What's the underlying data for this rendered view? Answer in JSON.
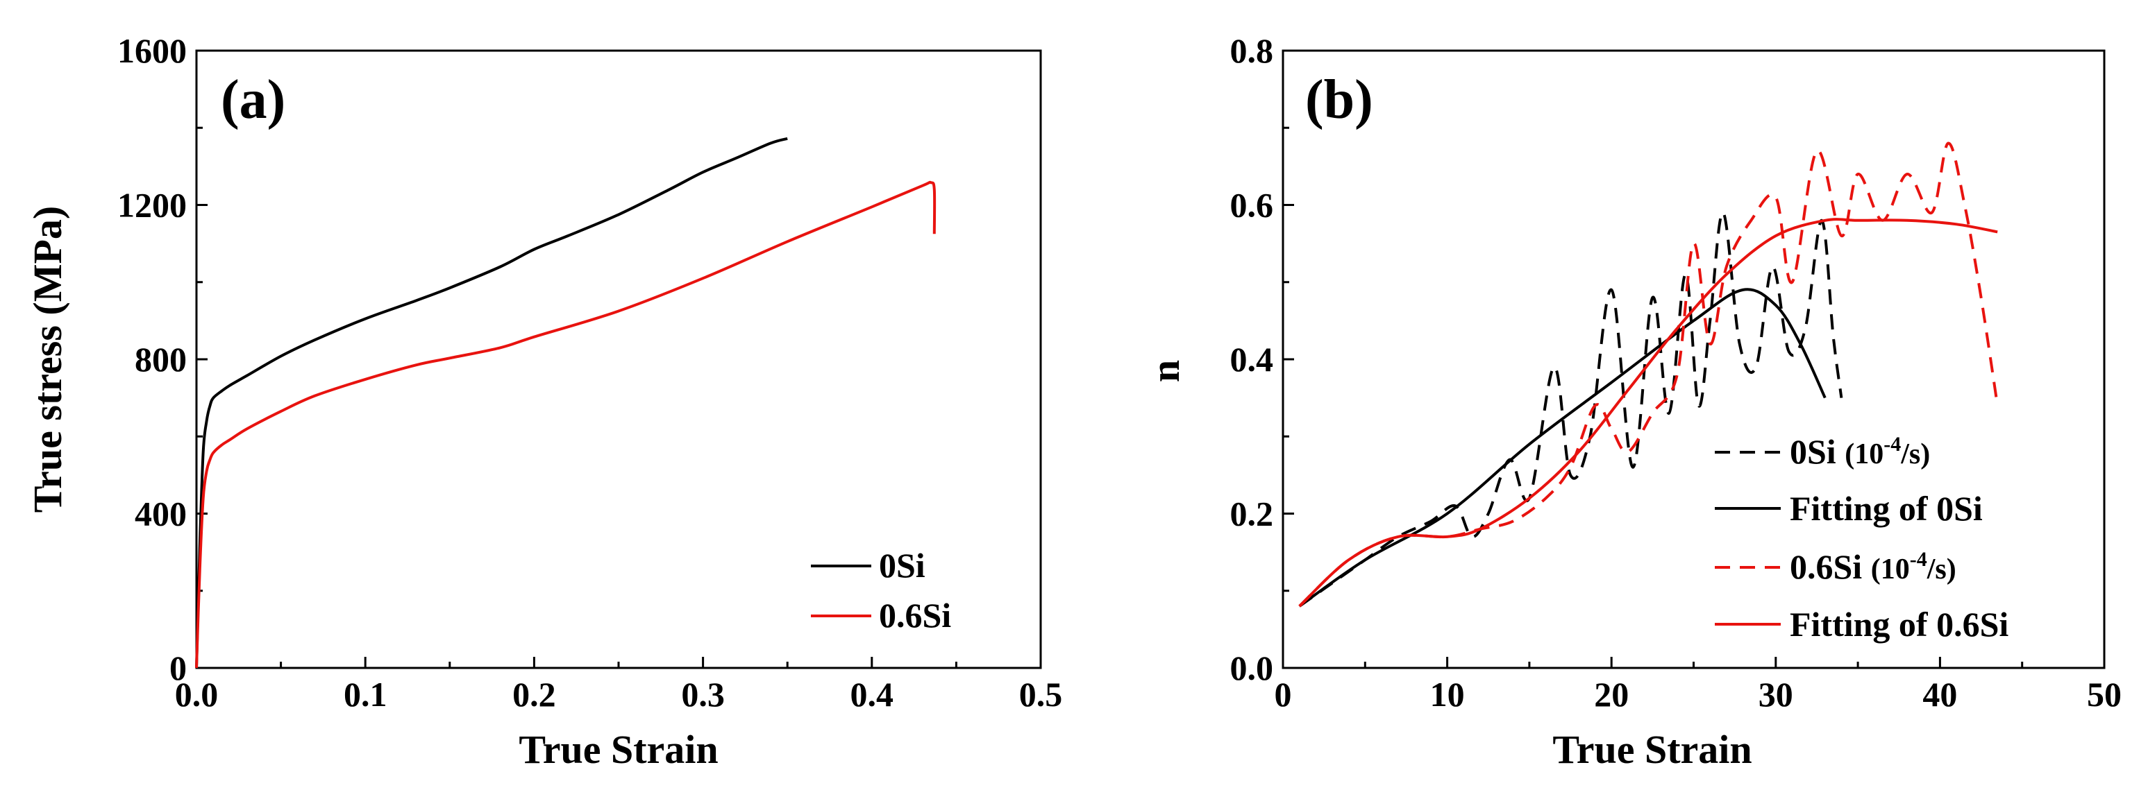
{
  "chart_data": [
    {
      "type": "line",
      "panel_label": "(a)",
      "xlabel": "True Strain",
      "ylabel": "True stress (MPa)",
      "xlim": [
        0.0,
        0.5
      ],
      "ylim": [
        0,
        1600
      ],
      "x_ticks": [
        "0.0",
        "0.1",
        "0.2",
        "0.3",
        "0.4",
        "0.5"
      ],
      "y_ticks": [
        "0",
        "400",
        "800",
        "1200",
        "1600"
      ],
      "grid": false,
      "legend_position": "bottom-right",
      "series": [
        {
          "name": "0Si",
          "color": "#000000",
          "style": "solid",
          "x": [
            0.0,
            0.002,
            0.004,
            0.006,
            0.008,
            0.01,
            0.015,
            0.02,
            0.03,
            0.05,
            0.07,
            0.1,
            0.13,
            0.15,
            0.18,
            0.2,
            0.22,
            0.25,
            0.28,
            0.3,
            0.32,
            0.34,
            0.35
          ],
          "y": [
            0,
            320,
            560,
            640,
            680,
            700,
            718,
            733,
            758,
            808,
            850,
            905,
            952,
            985,
            1040,
            1085,
            1120,
            1175,
            1240,
            1285,
            1322,
            1360,
            1372
          ]
        },
        {
          "name": "0.6Si",
          "color": "#e8130f",
          "style": "solid",
          "x": [
            0.0,
            0.002,
            0.004,
            0.006,
            0.008,
            0.01,
            0.015,
            0.02,
            0.03,
            0.05,
            0.07,
            0.1,
            0.13,
            0.15,
            0.18,
            0.2,
            0.25,
            0.3,
            0.35,
            0.4,
            0.43,
            0.435,
            0.437,
            0.437
          ],
          "y": [
            0,
            260,
            440,
            510,
            540,
            558,
            578,
            592,
            620,
            665,
            705,
            748,
            785,
            803,
            830,
            858,
            925,
            1010,
            1105,
            1195,
            1250,
            1258,
            1240,
            1125
          ]
        }
      ]
    },
    {
      "type": "line",
      "panel_label": "(b)",
      "xlabel": "True Strain",
      "ylabel": "n",
      "xlim": [
        0,
        50
      ],
      "ylim": [
        0.0,
        0.8
      ],
      "x_ticks": [
        "0",
        "10",
        "20",
        "30",
        "40",
        "50"
      ],
      "y_ticks": [
        "0.0",
        "0.2",
        "0.4",
        "0.6",
        "0.8"
      ],
      "grid": false,
      "legend_position": "bottom-right",
      "series": [
        {
          "name": "0Si (10-4/s)",
          "color": "#000000",
          "style": "dashed",
          "x": [
            1,
            3,
            5,
            7,
            9,
            10.5,
            11.5,
            12.5,
            13.8,
            15,
            16.5,
            17.5,
            18.7,
            20,
            21.3,
            22.5,
            23.5,
            24.5,
            25.3,
            26,
            26.8,
            27.8,
            28.8,
            29.8,
            30.8,
            31.8,
            32.8,
            33.5,
            34
          ],
          "y": [
            0.08,
            0.11,
            0.14,
            0.17,
            0.19,
            0.21,
            0.17,
            0.2,
            0.27,
            0.22,
            0.39,
            0.25,
            0.3,
            0.49,
            0.26,
            0.48,
            0.33,
            0.51,
            0.34,
            0.45,
            0.59,
            0.42,
            0.39,
            0.52,
            0.41,
            0.44,
            0.58,
            0.43,
            0.35
          ]
        },
        {
          "name": "Fitting of 0Si",
          "color": "#000000",
          "style": "solid",
          "x": [
            1,
            5,
            10,
            15,
            20,
            25,
            28,
            30,
            31.5,
            33
          ],
          "y": [
            0.08,
            0.14,
            0.2,
            0.29,
            0.37,
            0.45,
            0.49,
            0.47,
            0.42,
            0.35
          ]
        },
        {
          "name": "0.6Si (10-4/s)",
          "color": "#e8130f",
          "style": "dashed",
          "x": [
            1,
            4,
            7,
            10,
            12,
            14,
            16,
            17.5,
            19,
            20,
            21,
            22.5,
            24,
            25,
            26,
            27,
            28.5,
            30,
            31,
            32.5,
            34,
            35,
            36.5,
            38,
            39.5,
            40.5,
            41.5,
            42.5,
            43.5
          ],
          "y": [
            0.08,
            0.14,
            0.17,
            0.17,
            0.18,
            0.19,
            0.22,
            0.26,
            0.34,
            0.31,
            0.28,
            0.33,
            0.38,
            0.55,
            0.42,
            0.52,
            0.58,
            0.61,
            0.5,
            0.67,
            0.56,
            0.64,
            0.58,
            0.64,
            0.59,
            0.68,
            0.6,
            0.48,
            0.34
          ]
        },
        {
          "name": "Fitting of 0.6Si",
          "color": "#e8130f",
          "style": "solid",
          "x": [
            1,
            4,
            7,
            10,
            12,
            15,
            18,
            21,
            24,
            27,
            30,
            33,
            35,
            38,
            41,
            43.5
          ],
          "y": [
            0.08,
            0.14,
            0.17,
            0.17,
            0.18,
            0.22,
            0.28,
            0.36,
            0.44,
            0.51,
            0.56,
            0.58,
            0.58,
            0.58,
            0.575,
            0.565
          ]
        }
      ]
    }
  ],
  "legend_text": {
    "a": [
      "0Si",
      "0.6Si"
    ],
    "b": [
      {
        "main": "0Si ",
        "paren_open": "(10",
        "sup": "-4",
        "paren_close": "/s)"
      },
      {
        "main": "Fitting of 0Si"
      },
      {
        "main": "0.6Si ",
        "paren_open": "(10",
        "sup": "-4",
        "paren_close": "/s)"
      },
      {
        "main": "Fitting of 0.6Si"
      }
    ]
  }
}
